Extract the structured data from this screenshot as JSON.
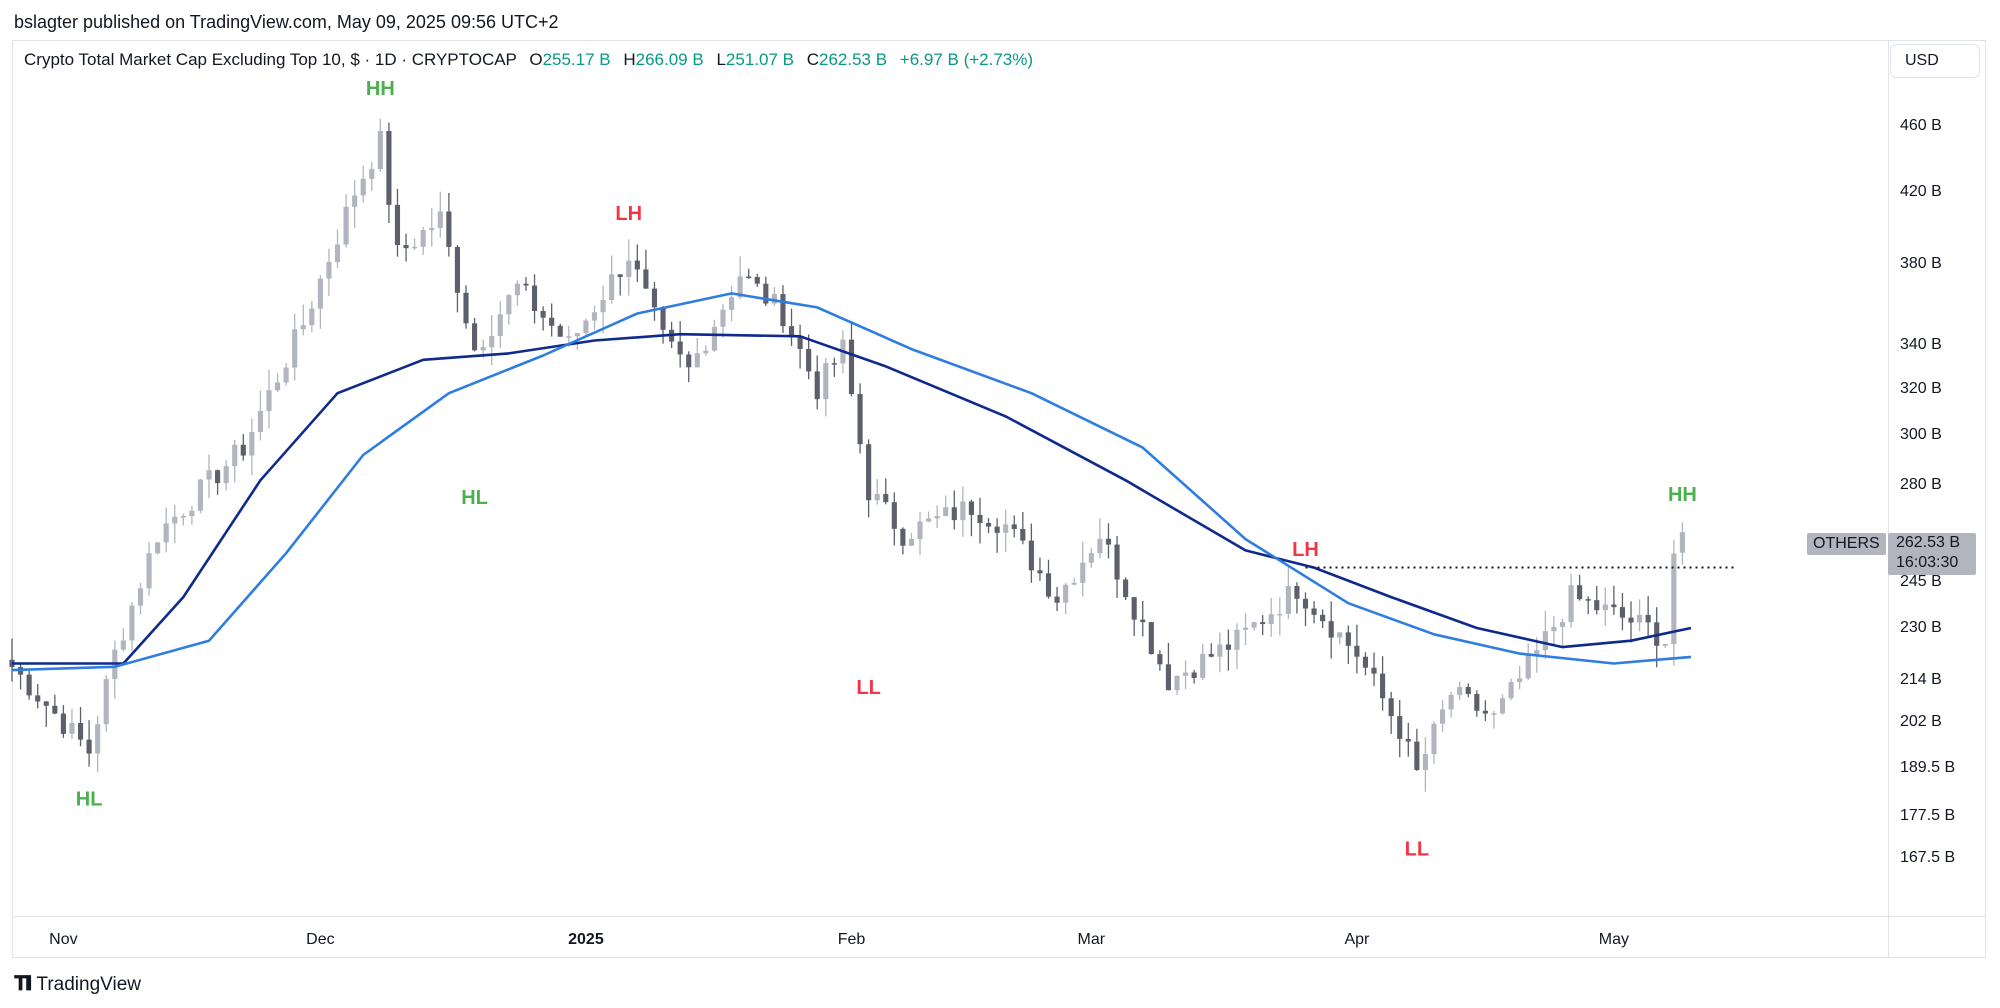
{
  "publisher": "bslagter published on TradingView.com, May 09, 2025 09:56 UTC+2",
  "header": {
    "symbol": "Crypto Total Market Cap Excluding Top 10, $ · 1D · CRYPTOCAP",
    "open_label": "O",
    "open": "255.17 B",
    "high_label": "H",
    "high": "266.09 B",
    "low_label": "L",
    "low": "251.07 B",
    "close_label": "C",
    "close": "262.53 B",
    "change": "+6.97 B (+2.73%)"
  },
  "currency_button": "USD",
  "price_tag": {
    "symbol": "OTHERS",
    "price": "262.53 B",
    "countdown": "16:03:30"
  },
  "brand": "TradingView",
  "colors": {
    "up_candle": "#b2b5be",
    "down_candle": "#5d606b",
    "ma_fast": "#0d2a8c",
    "ma_slow": "#2f7de1",
    "green_label": "#4caf50",
    "red_label": "#f23645",
    "change_green": "#089981"
  },
  "chart_data": {
    "type": "candlestick",
    "title": "Crypto Total Market Cap Excluding Top 10, $ · 1D · CRYPTOCAP",
    "y_scale": "log",
    "y_unit": "B USD",
    "y_ticks": [
      {
        "value": 460,
        "label": "460 B"
      },
      {
        "value": 420,
        "label": "420 B"
      },
      {
        "value": 380,
        "label": "380 B"
      },
      {
        "value": 340,
        "label": "340 B"
      },
      {
        "value": 320,
        "label": "320 B"
      },
      {
        "value": 300,
        "label": "300 B"
      },
      {
        "value": 280,
        "label": "280 B"
      },
      {
        "value": 245,
        "label": "245 B"
      },
      {
        "value": 230,
        "label": "230 B"
      },
      {
        "value": 214,
        "label": "214 B"
      },
      {
        "value": 202,
        "label": "202 B"
      },
      {
        "value": 189.5,
        "label": "189.5 B"
      },
      {
        "value": 177.5,
        "label": "177.5 B"
      },
      {
        "value": 167.5,
        "label": "167.5 B"
      }
    ],
    "x_ticks": [
      {
        "date": "2024-11-01",
        "label": "Nov",
        "bold": false
      },
      {
        "date": "2024-12-01",
        "label": "Dec",
        "bold": false
      },
      {
        "date": "2025-01-01",
        "label": "2025",
        "bold": true
      },
      {
        "date": "2025-02-01",
        "label": "Feb",
        "bold": false
      },
      {
        "date": "2025-03-01",
        "label": "Mar",
        "bold": false
      },
      {
        "date": "2025-04-01",
        "label": "Apr",
        "bold": false
      },
      {
        "date": "2025-05-01",
        "label": "May",
        "bold": false
      }
    ],
    "x_range": [
      "2024-10-26",
      "2025-06-02"
    ],
    "y_range": [
      158,
      490
    ],
    "swing_path": [
      {
        "date": "2024-10-26",
        "close": 218
      },
      {
        "date": "2024-11-04",
        "close": 194
      },
      {
        "date": "2024-11-07",
        "close": 222
      },
      {
        "date": "2024-11-12",
        "close": 262
      },
      {
        "date": "2024-11-22",
        "close": 295
      },
      {
        "date": "2024-11-29",
        "close": 350
      },
      {
        "date": "2024-12-05",
        "close": 420
      },
      {
        "date": "2024-12-08",
        "close": 450
      },
      {
        "date": "2024-12-10",
        "close": 385
      },
      {
        "date": "2024-12-15",
        "close": 405
      },
      {
        "date": "2024-12-19",
        "close": 338
      },
      {
        "date": "2024-12-24",
        "close": 368
      },
      {
        "date": "2024-12-30",
        "close": 340
      },
      {
        "date": "2025-01-06",
        "close": 385
      },
      {
        "date": "2025-01-10",
        "close": 342
      },
      {
        "date": "2025-01-13",
        "close": 328
      },
      {
        "date": "2025-01-19",
        "close": 375
      },
      {
        "date": "2025-01-24",
        "close": 355
      },
      {
        "date": "2025-01-28",
        "close": 320
      },
      {
        "date": "2025-01-31",
        "close": 338
      },
      {
        "date": "2025-02-03",
        "close": 278
      },
      {
        "date": "2025-02-07",
        "close": 262
      },
      {
        "date": "2025-02-15",
        "close": 272
      },
      {
        "date": "2025-02-19",
        "close": 265
      },
      {
        "date": "2025-02-25",
        "close": 240
      },
      {
        "date": "2025-03-02",
        "close": 262
      },
      {
        "date": "2025-03-10",
        "close": 214
      },
      {
        "date": "2025-03-18",
        "close": 226
      },
      {
        "date": "2025-03-25",
        "close": 243
      },
      {
        "date": "2025-04-01",
        "close": 222
      },
      {
        "date": "2025-04-06",
        "close": 200
      },
      {
        "date": "2025-04-08",
        "close": 188
      },
      {
        "date": "2025-04-12",
        "close": 210
      },
      {
        "date": "2025-04-17",
        "close": 203
      },
      {
        "date": "2025-04-22",
        "close": 222
      },
      {
        "date": "2025-04-26",
        "close": 240
      },
      {
        "date": "2025-05-05",
        "close": 230
      },
      {
        "date": "2025-05-07",
        "close": 226
      },
      {
        "date": "2025-05-08",
        "close": 255.17
      },
      {
        "date": "2025-05-09",
        "close": 262.53
      }
    ],
    "last_candle": {
      "date": "2025-05-09",
      "open": 255.17,
      "high": 266.09,
      "low": 251.07,
      "close": 262.53
    },
    "moving_averages": [
      {
        "color": "#0d2a8c",
        "points": [
          {
            "date": "2024-10-26",
            "value": 219
          },
          {
            "date": "2024-11-08",
            "value": 219
          },
          {
            "date": "2024-11-15",
            "value": 240
          },
          {
            "date": "2024-11-24",
            "value": 282
          },
          {
            "date": "2024-12-03",
            "value": 318
          },
          {
            "date": "2024-12-13",
            "value": 333
          },
          {
            "date": "2024-12-23",
            "value": 336
          },
          {
            "date": "2025-01-02",
            "value": 342
          },
          {
            "date": "2025-01-12",
            "value": 345
          },
          {
            "date": "2025-01-26",
            "value": 344
          },
          {
            "date": "2025-02-05",
            "value": 330
          },
          {
            "date": "2025-02-19",
            "value": 308
          },
          {
            "date": "2025-03-05",
            "value": 282
          },
          {
            "date": "2025-03-19",
            "value": 256
          },
          {
            "date": "2025-03-27",
            "value": 250
          },
          {
            "date": "2025-04-05",
            "value": 240
          },
          {
            "date": "2025-04-15",
            "value": 230
          },
          {
            "date": "2025-04-25",
            "value": 224
          },
          {
            "date": "2025-05-03",
            "value": 226
          },
          {
            "date": "2025-05-10",
            "value": 230
          }
        ]
      },
      {
        "color": "#2f7de1",
        "points": [
          {
            "date": "2024-10-26",
            "value": 217
          },
          {
            "date": "2024-11-07",
            "value": 218
          },
          {
            "date": "2024-11-18",
            "value": 226
          },
          {
            "date": "2024-11-27",
            "value": 255
          },
          {
            "date": "2024-12-06",
            "value": 292
          },
          {
            "date": "2024-12-16",
            "value": 318
          },
          {
            "date": "2024-12-27",
            "value": 335
          },
          {
            "date": "2025-01-07",
            "value": 355
          },
          {
            "date": "2025-01-18",
            "value": 365
          },
          {
            "date": "2025-01-28",
            "value": 358
          },
          {
            "date": "2025-02-08",
            "value": 338
          },
          {
            "date": "2025-02-22",
            "value": 318
          },
          {
            "date": "2025-03-07",
            "value": 295
          },
          {
            "date": "2025-03-19",
            "value": 260
          },
          {
            "date": "2025-03-31",
            "value": 238
          },
          {
            "date": "2025-04-10",
            "value": 228
          },
          {
            "date": "2025-04-20",
            "value": 222
          },
          {
            "date": "2025-05-01",
            "value": 219
          },
          {
            "date": "2025-05-10",
            "value": 221
          }
        ]
      }
    ],
    "horizontal_level": {
      "value": 250,
      "from": "2025-03-26",
      "to": "2025-05-15",
      "style": "dotted"
    },
    "annotations": [
      {
        "text": "HH",
        "date": "2024-12-08",
        "value": 480,
        "color": "#4caf50"
      },
      {
        "text": "HL",
        "date": "2024-11-04",
        "value": 180,
        "color": "#4caf50"
      },
      {
        "text": "HL",
        "date": "2024-12-19",
        "value": 273,
        "color": "#4caf50"
      },
      {
        "text": "LH",
        "date": "2025-01-06",
        "value": 404,
        "color": "#f23645"
      },
      {
        "text": "LL",
        "date": "2025-02-03",
        "value": 210,
        "color": "#f23645"
      },
      {
        "text": "LH",
        "date": "2025-03-26",
        "value": 254,
        "color": "#f23645"
      },
      {
        "text": "LL",
        "date": "2025-04-08",
        "value": 168,
        "color": "#f23645"
      },
      {
        "text": "HH",
        "date": "2025-05-09",
        "value": 274,
        "color": "#4caf50"
      }
    ]
  }
}
